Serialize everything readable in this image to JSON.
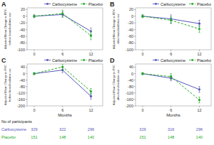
{
  "chart_data": [
    {
      "type": "line",
      "title": "A",
      "ylabel": "Adjusted Mean Change in FEV₁\nbefore bronchodilator use",
      "x": [
        0,
        6,
        12
      ],
      "xlim": [
        -1.5,
        14.5
      ],
      "xticks": [
        0,
        6,
        12
      ],
      "ylim": [
        -100,
        25
      ],
      "yticks": [
        -100,
        -80,
        -60,
        -40,
        -20,
        0,
        20
      ],
      "legend": "upper right",
      "series": [
        {
          "name": "Carbocysteine",
          "color": "#5555bb",
          "line_style": "solid",
          "marker": "circle",
          "values": [
            0,
            5,
            -45
          ],
          "errors": [
            4,
            8,
            10
          ]
        },
        {
          "name": "Placebo",
          "color": "#22aa22",
          "line_style": "dashed",
          "marker": "circle",
          "values": [
            0,
            8,
            -58
          ],
          "errors": [
            4,
            10,
            12
          ]
        }
      ]
    },
    {
      "type": "line",
      "title": "B",
      "ylabel": "Adjusted Mean Change in FEV₁\nafter bronchodilator use",
      "x": [
        0,
        6,
        12
      ],
      "xlim": [
        -1.5,
        14.5
      ],
      "xticks": [
        0,
        6,
        12
      ],
      "ylim": [
        -100,
        25
      ],
      "yticks": [
        -100,
        -80,
        -60,
        -40,
        -20,
        0,
        20
      ],
      "legend": "upper right",
      "series": [
        {
          "name": "Carbocysteine",
          "color": "#5555bb",
          "line_style": "solid",
          "marker": "circle",
          "values": [
            0,
            -8,
            -22
          ],
          "errors": [
            4,
            12,
            10
          ]
        },
        {
          "name": "Placebo",
          "color": "#22aa22",
          "line_style": "dashed",
          "marker": "circle",
          "values": [
            0,
            -12,
            -38
          ],
          "errors": [
            4,
            10,
            10
          ]
        }
      ]
    },
    {
      "type": "line",
      "title": "C",
      "ylabel": "Adjusted Mean Change in FVC\nbefore bronchodilator use",
      "xlabel": "Months",
      "x": [
        0,
        6,
        12
      ],
      "xlim": [
        -1.5,
        14.5
      ],
      "xticks": [
        0,
        6,
        12
      ],
      "ylim": [
        -200,
        60
      ],
      "yticks": [
        -200,
        -160,
        -120,
        -80,
        -40,
        0,
        40
      ],
      "legend": "upper right",
      "series": [
        {
          "name": "Carbocysteine",
          "color": "#5555bb",
          "line_style": "solid",
          "marker": "circle",
          "values": [
            0,
            22,
            -140
          ],
          "errors": [
            6,
            16,
            18
          ]
        },
        {
          "name": "Placebo",
          "color": "#22aa22",
          "line_style": "dashed",
          "marker": "circle",
          "values": [
            0,
            42,
            -110
          ],
          "errors": [
            6,
            18,
            18
          ]
        }
      ],
      "participants": {
        "header": "No of participants",
        "rows": [
          {
            "name": "Carbocysteine",
            "color": "#5555bb",
            "values": [
              329,
              322,
              296
            ]
          },
          {
            "name": "Placebo",
            "color": "#22aa22",
            "values": [
              151,
              148,
              140
            ]
          }
        ]
      }
    },
    {
      "type": "line",
      "title": "D",
      "ylabel": "Adjusted Mean Change in FVC\nafter bronchodilator use",
      "xlabel": "Months",
      "x": [
        0,
        6,
        12
      ],
      "xlim": [
        -1.5,
        14.5
      ],
      "xticks": [
        0,
        6,
        12
      ],
      "ylim": [
        -200,
        60
      ],
      "yticks": [
        -200,
        -160,
        -120,
        -80,
        -40,
        0,
        40
      ],
      "legend": "upper right",
      "series": [
        {
          "name": "Carbocysteine",
          "color": "#5555bb",
          "line_style": "solid",
          "marker": "circle",
          "values": [
            0,
            -28,
            -98
          ],
          "errors": [
            6,
            16,
            18
          ]
        },
        {
          "name": "Placebo",
          "color": "#22aa22",
          "line_style": "dashed",
          "marker": "circle",
          "values": [
            0,
            -18,
            -163
          ],
          "errors": [
            6,
            18,
            18
          ]
        }
      ],
      "participants": {
        "rows": [
          {
            "color": "#5555bb",
            "values": [
              329,
              316,
              296
            ]
          },
          {
            "color": "#22aa22",
            "values": [
              151,
              148,
              140
            ]
          }
        ]
      }
    }
  ]
}
